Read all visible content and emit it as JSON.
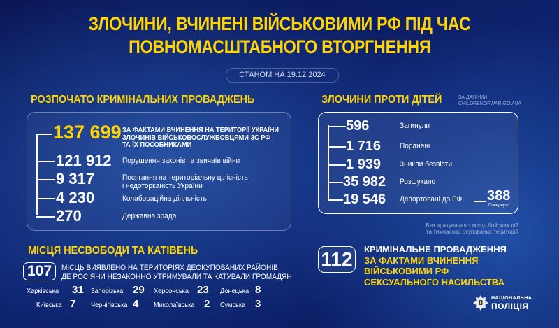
{
  "title": {
    "line1": "ЗЛОЧИНИ, ВЧИНЕНІ ВІЙСЬКОВИМИ РФ ПІД ЧАС",
    "line2": "ПОВНОМАСШТАБНОГО ВТОРГНЕННЯ"
  },
  "date": "СТАНОМ НА 19.12.2024",
  "criminal": {
    "heading": "РОЗПОЧАТО КРИМІНАЛЬНИХ ПРОВАДЖЕНЬ",
    "items": [
      {
        "value": "137 699",
        "label": [
          "ЗА ФАКТАМИ ВЧИНЕННЯ НА ТЕРИТОРІЇ УКРАЇНИ",
          "ЗЛОЧИНІВ ВІЙСЬКОВОСЛУЖБОВЦЯМИ ЗС РФ",
          "ТА ЇХ ПОСОБНИКАМИ"
        ]
      },
      {
        "value": "121 912",
        "label": [
          "Порушення законів та звичаїв війни"
        ]
      },
      {
        "value": "9 317",
        "label": [
          "Посягання на територіальну цілісність",
          "і недоторканість України"
        ]
      },
      {
        "value": "4 230",
        "label": [
          "Колабораційна діяльність"
        ]
      },
      {
        "value": "270",
        "label": [
          "Державна зрада"
        ]
      }
    ]
  },
  "children": {
    "heading": "ЗЛОЧИНИ ПРОТИ ДІТЕЙ",
    "source": [
      "ЗА ДАНИМИ",
      "CHILDRENOFWAR.GOV.UA"
    ],
    "items": [
      {
        "value": "596",
        "label": "Загинули"
      },
      {
        "value": "1 716",
        "label": "Поранені"
      },
      {
        "value": "1 939",
        "label": "Зникли безвісти"
      },
      {
        "value": "35 982",
        "label": "Розшукано"
      },
      {
        "value": "19 546",
        "label": "Депортовані до РФ"
      }
    ],
    "returned": {
      "value": "388",
      "label": "Повернуто"
    },
    "note": [
      "Без врахування з місць бойових дій",
      "та тимчасово окупованих територій"
    ]
  },
  "torture": {
    "heading": "МІСЦЯ НЕСВОБОДИ ТА КАТІВЕНЬ",
    "count": "107",
    "text": [
      "МІСЦЬ ВИЯВЛЕНО НА ТЕРИТОРІЯХ ДЕОКУПОВАНИХ РАЙОНІВ,",
      "ДЕ РОСІЯНИ НЕЗАКОННО УТРИМУВАЛИ ТА КАТУВАЛИ ГРОМАДЯН"
    ],
    "regions": [
      {
        "name": "Харківська",
        "value": "31"
      },
      {
        "name": "Запорізька",
        "value": "29"
      },
      {
        "name": "Херсонська",
        "value": "23"
      },
      {
        "name": "Донецька",
        "value": "8"
      },
      {
        "name": "Київська",
        "value": "7"
      },
      {
        "name": "Чернігівська",
        "value": "4"
      },
      {
        "name": "Миколаївська",
        "value": "2"
      },
      {
        "name": "Сумська",
        "value": "3"
      }
    ]
  },
  "sexual": {
    "count": "112",
    "lines": [
      "КРИМІНАЛЬНЕ ПРОВАДЖЕННЯ",
      "ЗА ФАКТАМИ ВЧИНЕННЯ",
      "ВІЙСЬКОВИМИ РФ",
      "СЕКСУАЛЬНОГО НАСИЛЬСТВА"
    ]
  },
  "logo": {
    "line1": "НАЦІОНАЛЬНА",
    "line2": "ПОЛІЦІЯ"
  },
  "colors": {
    "accent": "#ffd400",
    "background": "#0e2470"
  }
}
